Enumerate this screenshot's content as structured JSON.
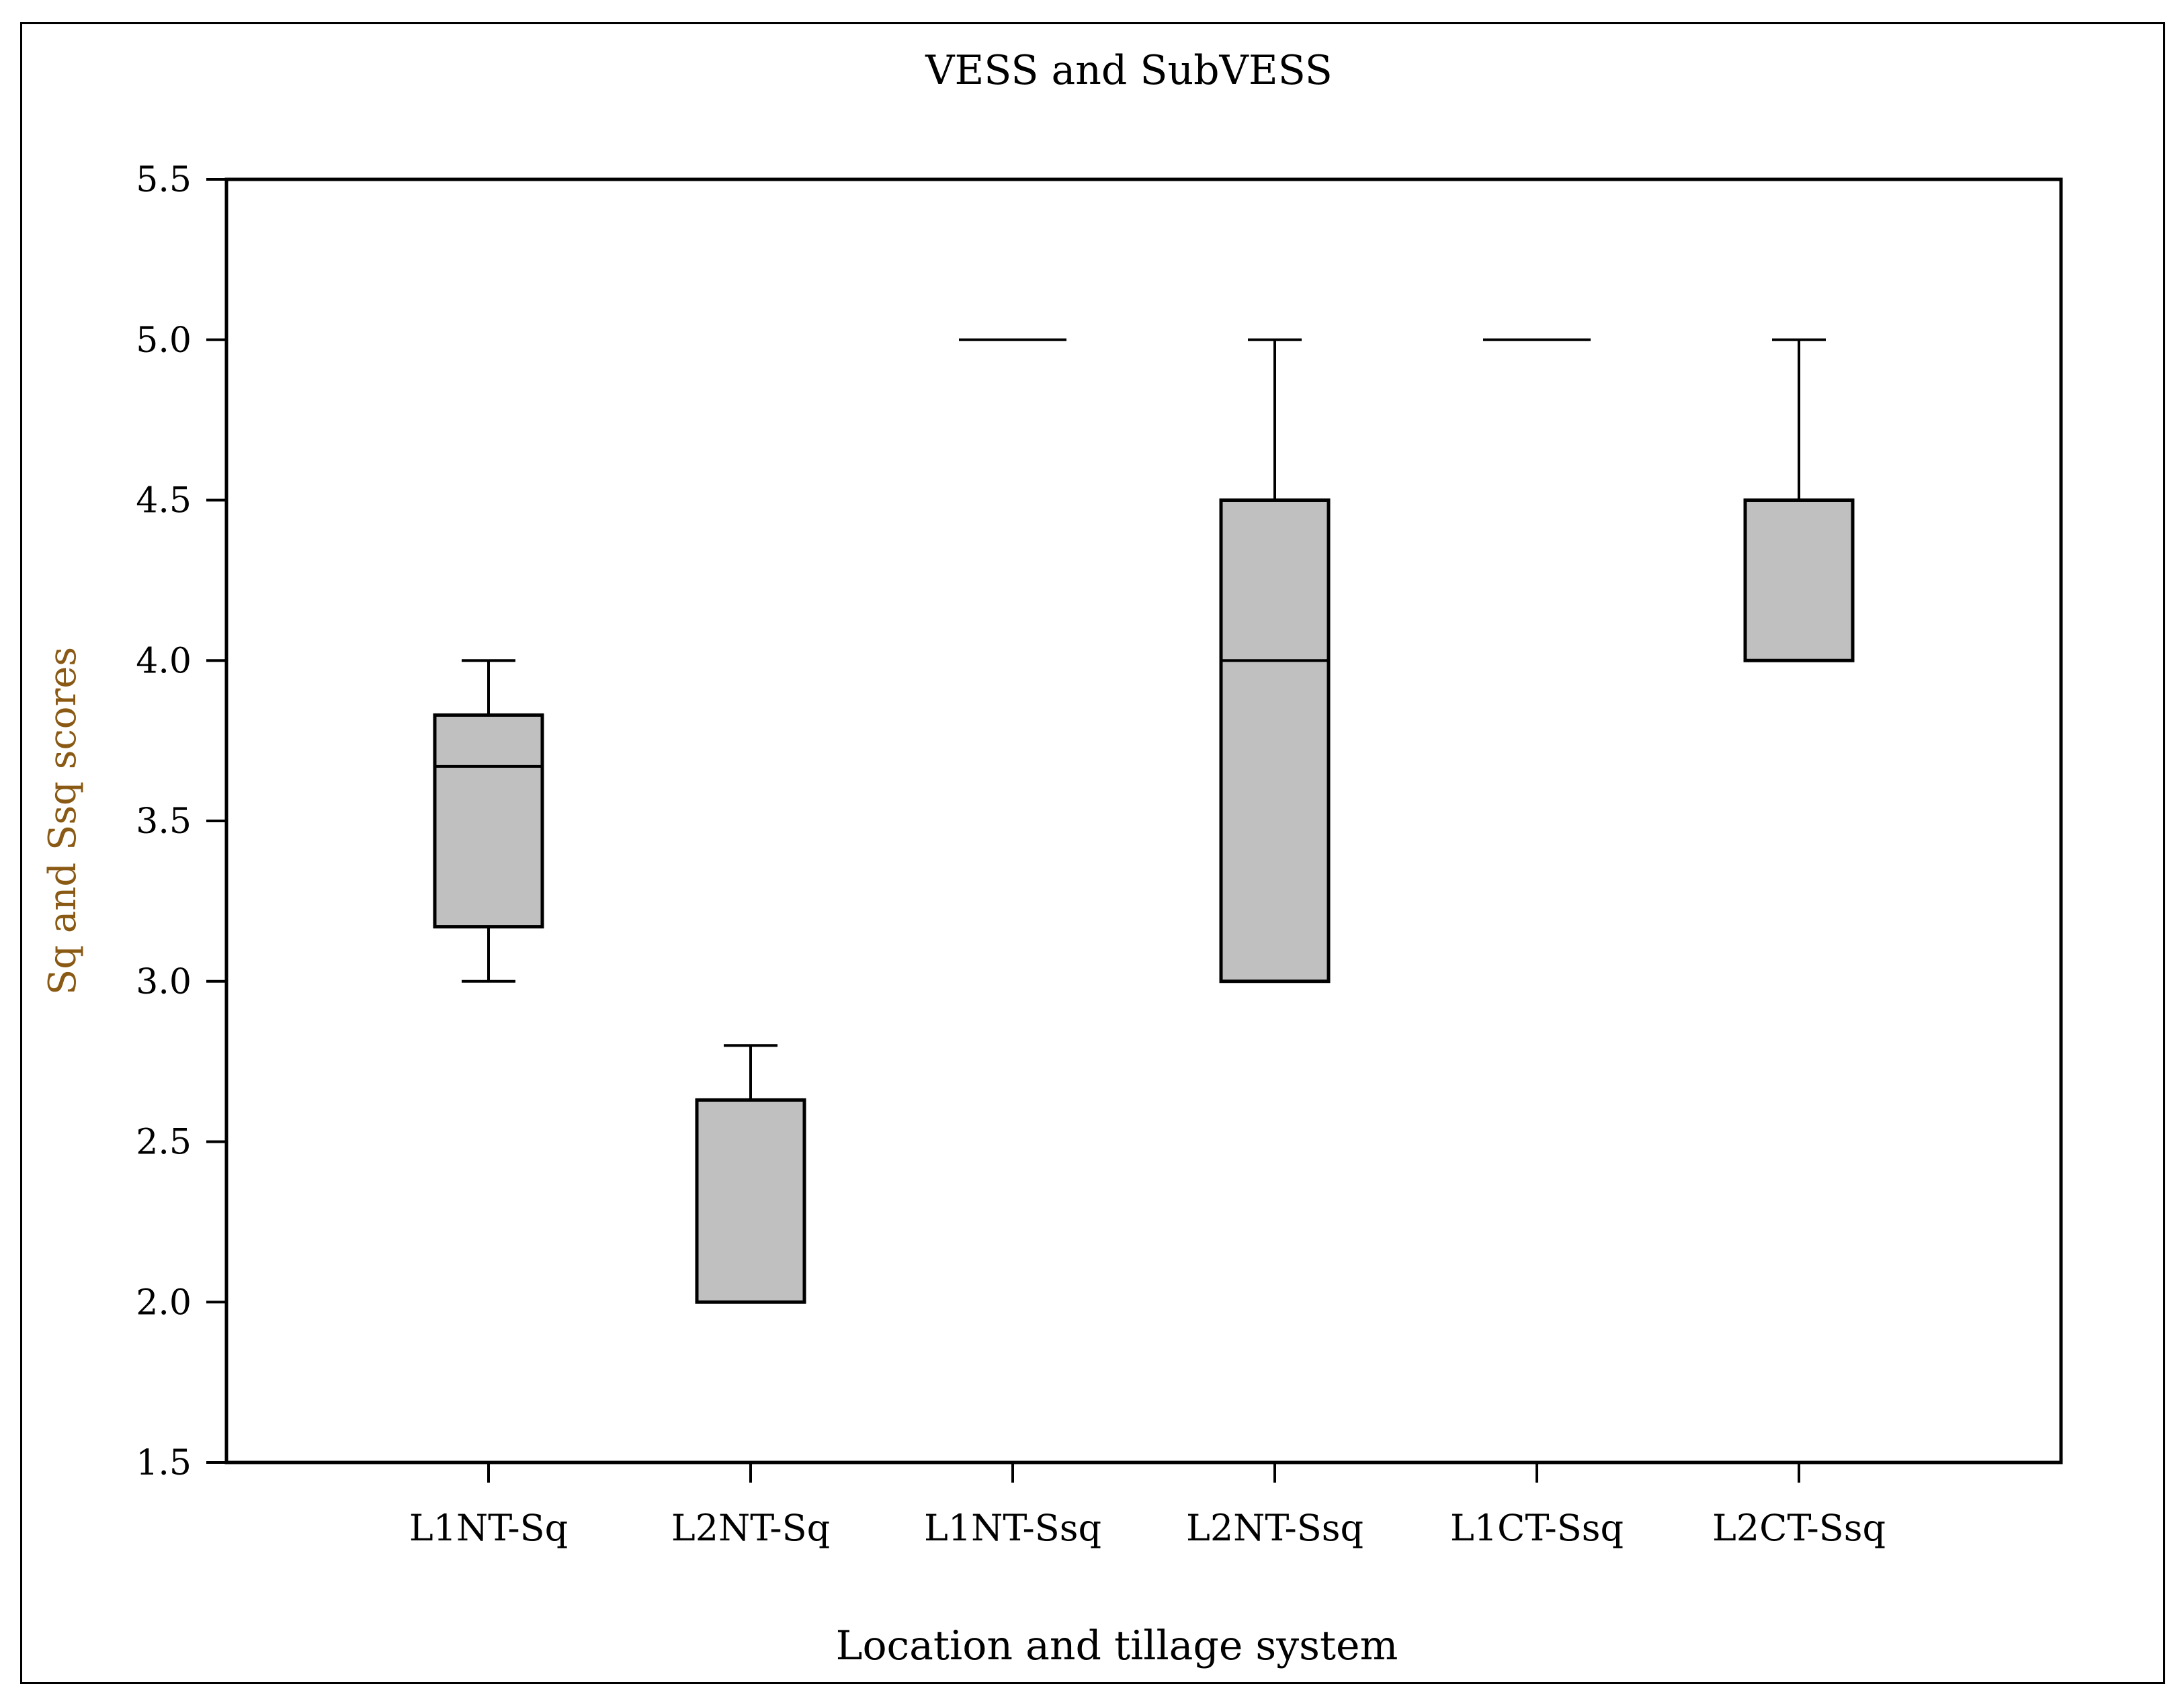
{
  "chart_data": {
    "type": "box",
    "title": "VESS and SubVESS",
    "xlabel": "Location and tillage system",
    "ylabel": "Sq and Ssq scores",
    "ylim": [
      1.5,
      5.5
    ],
    "yticks": [
      "1.5",
      "2.0",
      "2.5",
      "3.0",
      "3.5",
      "4.0",
      "4.5",
      "5.0",
      "5.5"
    ],
    "grid": false,
    "colors": {
      "box_fill": "#c0c0c0",
      "stroke": "#000000",
      "ylabel_color": "#8a5a14"
    },
    "categories": [
      "L1NT-Sq",
      "L2NT-Sq",
      "L1NT-Ssq",
      "L2NT-Ssq",
      "L1CT-Ssq",
      "L2CT-Ssq"
    ],
    "boxes": [
      {
        "category": "L1NT-Sq",
        "min": 3.0,
        "q1": 3.17,
        "median": 3.67,
        "q3": 3.83,
        "max": 4.0
      },
      {
        "category": "L2NT-Sq",
        "min": 2.0,
        "q1": 2.0,
        "median": 2.0,
        "q3": 2.63,
        "max": 2.8
      },
      {
        "category": "L1NT-Ssq",
        "min": 5.0,
        "q1": 5.0,
        "median": 5.0,
        "q3": 5.0,
        "max": 5.0
      },
      {
        "category": "L2NT-Ssq",
        "min": 3.0,
        "q1": 3.0,
        "median": 4.0,
        "q3": 4.5,
        "max": 5.0
      },
      {
        "category": "L1CT-Ssq",
        "min": 5.0,
        "q1": 5.0,
        "median": 5.0,
        "q3": 5.0,
        "max": 5.0
      },
      {
        "category": "L2CT-Ssq",
        "min": 4.0,
        "q1": 4.0,
        "median": 4.0,
        "q3": 4.5,
        "max": 5.0
      }
    ]
  }
}
